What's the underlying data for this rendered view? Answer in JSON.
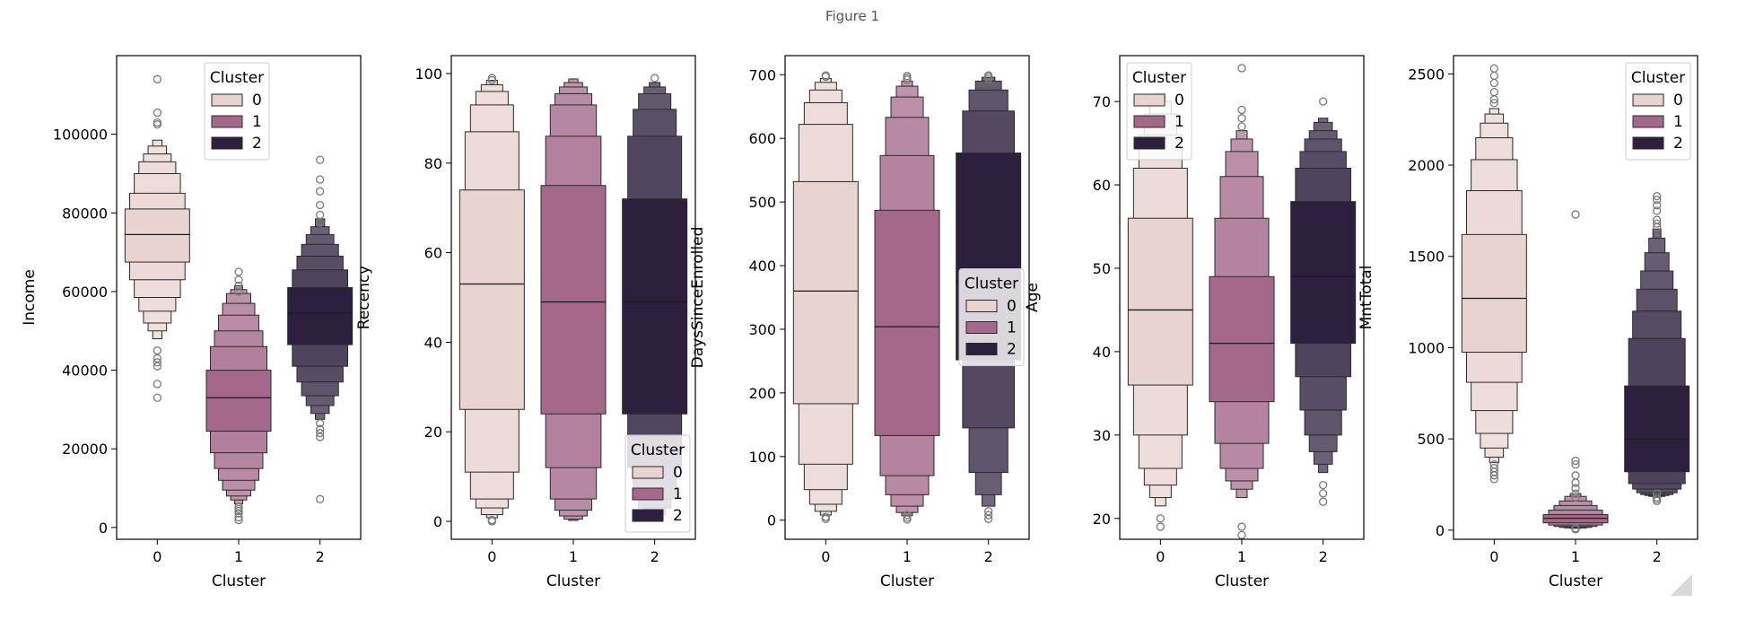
{
  "window": {
    "title": "Figure 1"
  },
  "colors": {
    "c0": "#e9d3d1",
    "c1": "#a4698a",
    "c2": "#2d203e",
    "axis": "#000000"
  },
  "chart_data": [
    {
      "type": "boxen",
      "xlabel": "Cluster",
      "ylabel": "Income",
      "categories": [
        "0",
        "1",
        "2"
      ],
      "ylim": [
        -3000,
        120000
      ],
      "yticks": [
        0,
        20000,
        40000,
        60000,
        80000,
        100000
      ],
      "legend": {
        "title": "Cluster",
        "entries": [
          "0",
          "1",
          "2"
        ],
        "placement": "upper-center"
      },
      "series": [
        {
          "median": 74500,
          "boxes": [
            [
              67500,
              81000
            ],
            [
              63000,
              85000
            ],
            [
              58500,
              90000
            ],
            [
              55000,
              93000
            ],
            [
              52000,
              95000
            ],
            [
              50000,
              97000
            ],
            [
              48000,
              98500
            ]
          ],
          "outliers": [
            114000,
            105500,
            103000,
            102500,
            45000,
            43000,
            42000,
            41000,
            36500,
            33000
          ]
        },
        {
          "median": 33000,
          "boxes": [
            [
              24500,
              40000
            ],
            [
              19000,
              46000
            ],
            [
              15000,
              50000
            ],
            [
              12000,
              54000
            ],
            [
              9500,
              57000
            ],
            [
              8000,
              59500
            ],
            [
              7000,
              60500
            ],
            [
              6000,
              61500
            ]
          ],
          "outliers": [
            65000,
            63000,
            61500,
            60000,
            5200,
            4700,
            4200,
            3600,
            2600,
            1900
          ]
        },
        {
          "median": 54500,
          "boxes": [
            [
              46500,
              61000
            ],
            [
              41000,
              65500
            ],
            [
              37000,
              69000
            ],
            [
              33500,
              72000
            ],
            [
              31000,
              74500
            ],
            [
              29000,
              76500
            ],
            [
              27500,
              78500
            ]
          ],
          "outliers": [
            93500,
            88500,
            85500,
            82000,
            79500,
            77500,
            26500,
            25000,
            24000,
            23000,
            7200
          ]
        }
      ]
    },
    {
      "type": "boxen",
      "xlabel": "Cluster",
      "ylabel": "Recency",
      "categories": [
        "0",
        "1",
        "2"
      ],
      "ylim": [
        -4,
        104
      ],
      "yticks": [
        0,
        20,
        40,
        60,
        80,
        100
      ],
      "legend": {
        "title": "Cluster",
        "entries": [
          "0",
          "1",
          "2"
        ],
        "placement": "lower-right"
      },
      "series": [
        {
          "median": 53,
          "boxes": [
            [
              25,
              74
            ],
            [
              11,
              87
            ],
            [
              5,
              93
            ],
            [
              3,
              96
            ],
            [
              1.5,
              97.5
            ],
            [
              0.8,
              98.5
            ]
          ],
          "outliers": [
            99,
            98.5,
            0.3,
            0
          ]
        },
        {
          "median": 49,
          "boxes": [
            [
              24,
              75
            ],
            [
              12,
              86
            ],
            [
              5,
              93
            ],
            [
              2.5,
              95.5
            ],
            [
              1.2,
              97
            ],
            [
              0.5,
              98
            ],
            [
              0.2,
              98.8
            ]
          ],
          "outliers": []
        },
        {
          "median": 49,
          "boxes": [
            [
              24,
              72
            ],
            [
              12,
              86
            ],
            [
              5,
              92
            ],
            [
              3,
              95.5
            ],
            [
              1.5,
              97
            ],
            [
              0.8,
              98
            ]
          ],
          "outliers": [
            99
          ]
        }
      ]
    },
    {
      "type": "boxen",
      "xlabel": "Cluster",
      "ylabel": "DaysSinceEnrolled",
      "categories": [
        "0",
        "1",
        "2"
      ],
      "ylim": [
        -30,
        730
      ],
      "yticks": [
        0,
        100,
        200,
        300,
        400,
        500,
        600,
        700
      ],
      "legend": {
        "title": "Cluster",
        "entries": [
          "0",
          "1",
          "2"
        ],
        "placement": "center-right"
      },
      "series": [
        {
          "median": 360,
          "boxes": [
            [
              183,
              532
            ],
            [
              88,
              622
            ],
            [
              48,
              656
            ],
            [
              25,
              676
            ],
            [
              14,
              688
            ],
            [
              8,
              694
            ]
          ],
          "outliers": [
            699,
            697,
            5,
            2
          ]
        },
        {
          "median": 304,
          "boxes": [
            [
              133,
              487
            ],
            [
              70,
              573
            ],
            [
              40,
              633
            ],
            [
              22,
              665
            ],
            [
              12,
              682
            ],
            [
              7,
              690
            ]
          ],
          "outliers": [
            698,
            695,
            692,
            8,
            4,
            1
          ]
        },
        {
          "median": 375,
          "boxes": [
            [
              252,
              577
            ],
            [
              145,
              643
            ],
            [
              75,
              676
            ],
            [
              40,
              690
            ],
            [
              22,
              696
            ]
          ],
          "outliers": [
            699,
            697,
            694,
            14,
            8,
            2
          ]
        }
      ]
    },
    {
      "type": "boxen",
      "xlabel": "Cluster",
      "ylabel": "Age",
      "categories": [
        "0",
        "1",
        "2"
      ],
      "ylim": [
        17.5,
        75.5
      ],
      "yticks": [
        20,
        30,
        40,
        50,
        60,
        70
      ],
      "legend": {
        "title": "Cluster",
        "entries": [
          "0",
          "1",
          "2"
        ],
        "placement": "upper-left"
      },
      "series": [
        {
          "median": 45,
          "boxes": [
            [
              36,
              56
            ],
            [
              30,
              62
            ],
            [
              26,
              66
            ],
            [
              24,
              68.5
            ],
            [
              22.5,
              70
            ],
            [
              21.5,
              71
            ]
          ],
          "outliers": [
            20,
            19
          ]
        },
        {
          "median": 41,
          "boxes": [
            [
              34,
              49
            ],
            [
              29,
              56
            ],
            [
              26,
              61
            ],
            [
              24.5,
              64
            ],
            [
              23.5,
              65.5
            ],
            [
              22.5,
              66.5
            ]
          ],
          "outliers": [
            74,
            69,
            68,
            67,
            19,
            18
          ]
        },
        {
          "median": 49,
          "boxes": [
            [
              41,
              58
            ],
            [
              37,
              62
            ],
            [
              33,
              64
            ],
            [
              30,
              65.5
            ],
            [
              28,
              66.5
            ],
            [
              26.5,
              67.5
            ],
            [
              25.5,
              68
            ]
          ],
          "outliers": [
            70,
            24,
            23,
            22
          ]
        }
      ]
    },
    {
      "type": "boxen",
      "xlabel": "Cluster",
      "ylabel": "MntTotal",
      "categories": [
        "0",
        "1",
        "2"
      ],
      "ylim": [
        -50,
        2600
      ],
      "yticks": [
        0,
        500,
        1000,
        1500,
        2000,
        2500
      ],
      "legend": {
        "title": "Cluster",
        "entries": [
          "0",
          "1",
          "2"
        ],
        "placement": "upper-right"
      },
      "series": [
        {
          "median": 1270,
          "boxes": [
            [
              975,
              1620
            ],
            [
              810,
              1860
            ],
            [
              655,
              2030
            ],
            [
              530,
              2150
            ],
            [
              450,
              2230
            ],
            [
              400,
              2280
            ],
            [
              370,
              2310
            ]
          ],
          "outliers": [
            2530,
            2490,
            2450,
            2400,
            2360,
            2340,
            360,
            340,
            320,
            300,
            280
          ]
        },
        {
          "median": 65,
          "boxes": [
            [
              40,
              85
            ],
            [
              28,
              110
            ],
            [
              20,
              135
            ],
            [
              15,
              160
            ],
            [
              12,
              185
            ],
            [
              10,
              200
            ]
          ],
          "outliers": [
            1730,
            380,
            360,
            300,
            260,
            230,
            200,
            180,
            10,
            5
          ]
        },
        {
          "median": 500,
          "boxes": [
            [
              320,
              790
            ],
            [
              255,
              1050
            ],
            [
              225,
              1200
            ],
            [
              205,
              1320
            ],
            [
              195,
              1420
            ],
            [
              190,
              1520
            ],
            [
              185,
              1600
            ],
            [
              180,
              1650
            ]
          ],
          "outliers": [
            1830,
            1810,
            1780,
            1750,
            1700,
            1680,
            1660,
            200,
            180,
            170,
            160
          ]
        }
      ]
    }
  ]
}
